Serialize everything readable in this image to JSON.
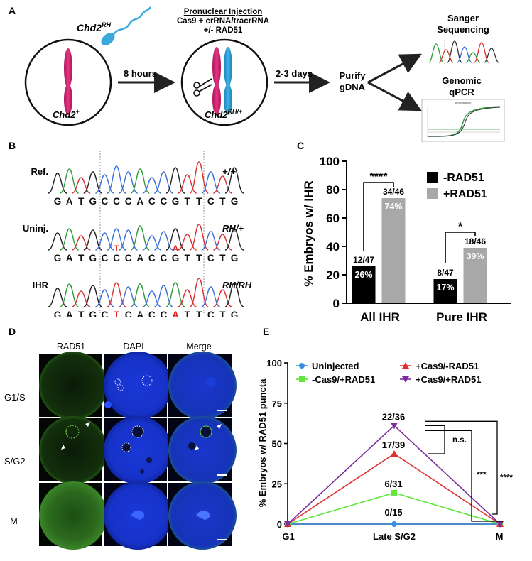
{
  "panel_a": {
    "label": "A",
    "sperm_label": "Chd2",
    "sperm_sup": "RH",
    "embryo1_label": "Chd2",
    "embryo1_sup": "+",
    "arrow1_label": "8 hours",
    "injection_title": "Pronuclear Injection",
    "injection_line2": "Cas9 + crRNA/tracrRNA",
    "injection_line3": "+/- RAD51",
    "embryo2_label": "Chd2",
    "embryo2_sup": "RH/+",
    "arrow2_label": "2-3 days",
    "purify_line1": "Purify",
    "purify_line2": "gDNA",
    "sanger_line1": "Sanger",
    "sanger_line2": "Sequencing",
    "qpcr_line1": "Genomic",
    "qpcr_line2": "qPCR",
    "qpcr_plot_title": "Amplification"
  },
  "panel_b": {
    "label": "B",
    "rows": [
      {
        "name": "Ref.",
        "genotype": "+/+",
        "seq": [
          "G",
          "A",
          "T",
          "G",
          "C",
          "C",
          "C",
          "A",
          "C",
          "C",
          "G",
          "T",
          "T",
          "C",
          "T",
          "G"
        ],
        "markers": []
      },
      {
        "name": "Uninj.",
        "genotype": "RH/+",
        "seq": [
          "G",
          "A",
          "T",
          "G",
          "C",
          "C",
          "C",
          "A",
          "C",
          "C",
          "G",
          "T",
          "T",
          "C",
          "T",
          "G"
        ],
        "markers": [
          {
            "pos": 5,
            "base": "T"
          },
          {
            "pos": 10,
            "base": "A"
          }
        ]
      },
      {
        "name": "IHR",
        "genotype": "RH/RH",
        "seq": [
          "G",
          "A",
          "T",
          "G",
          "C",
          "T",
          "C",
          "A",
          "C",
          "C",
          "A",
          "T",
          "T",
          "C",
          "T",
          "G"
        ],
        "markers": []
      }
    ],
    "red_positions": [
      5,
      10
    ]
  },
  "panel_c": {
    "label": "C",
    "chart_data": {
      "type": "bar",
      "title": "",
      "ylabel": "% Embryos w/ IHR",
      "xlabel": "",
      "ylim": [
        0,
        100
      ],
      "yticks": [
        "0",
        "20",
        "40",
        "60",
        "80",
        "100"
      ],
      "categories": [
        "All IHR",
        "Pure IHR"
      ],
      "series": [
        {
          "name": "-RAD51",
          "color": "#000000",
          "values": [
            26,
            17
          ],
          "fractions": [
            "12/47",
            "8/47"
          ],
          "labels": [
            "26%",
            "17%"
          ]
        },
        {
          "name": "+RAD51",
          "color": "#a8a8a8",
          "values": [
            74,
            39
          ],
          "fractions": [
            "34/46",
            "18/46"
          ],
          "labels": [
            "74%",
            "39%"
          ]
        }
      ],
      "significance": [
        {
          "category": "All IHR",
          "text": "****"
        },
        {
          "category": "Pure IHR",
          "text": "*"
        }
      ],
      "legend": [
        "-RAD51",
        "+RAD51"
      ]
    }
  },
  "panel_d": {
    "label": "D",
    "columns": [
      "RAD51",
      "DAPI",
      "Merge"
    ],
    "rows": [
      "G1/S",
      "S/G2",
      "M"
    ]
  },
  "panel_e": {
    "label": "E",
    "chart_data": {
      "type": "line",
      "ylabel": "% Embryos w/ RAD51 puncta",
      "xlabel": "",
      "ylim": [
        0,
        100
      ],
      "yticks": [
        "0",
        "25",
        "50",
        "75",
        "100"
      ],
      "x": [
        "G1",
        "Late S/G2",
        "M"
      ],
      "series": [
        {
          "name": "Uninjected",
          "color": "#3b8fe0",
          "marker": "circle",
          "values": [
            0,
            0,
            0
          ]
        },
        {
          "name": "-Cas9/+RAD51",
          "color": "#5ee63a",
          "marker": "square",
          "values": [
            0,
            19.4,
            0
          ]
        },
        {
          "name": "+Cas9/-RAD51",
          "color": "#e03030",
          "marker": "triangle-up",
          "values": [
            0,
            43.6,
            0
          ]
        },
        {
          "name": "+Cas9/+RAD51",
          "color": "#7a2f9c",
          "marker": "triangle-down",
          "values": [
            0,
            61.1,
            0
          ]
        }
      ],
      "point_labels": [
        "22/36",
        "17/39",
        "6/31",
        "0/15"
      ],
      "significance": [
        "n.s.",
        "***",
        "****"
      ]
    }
  }
}
